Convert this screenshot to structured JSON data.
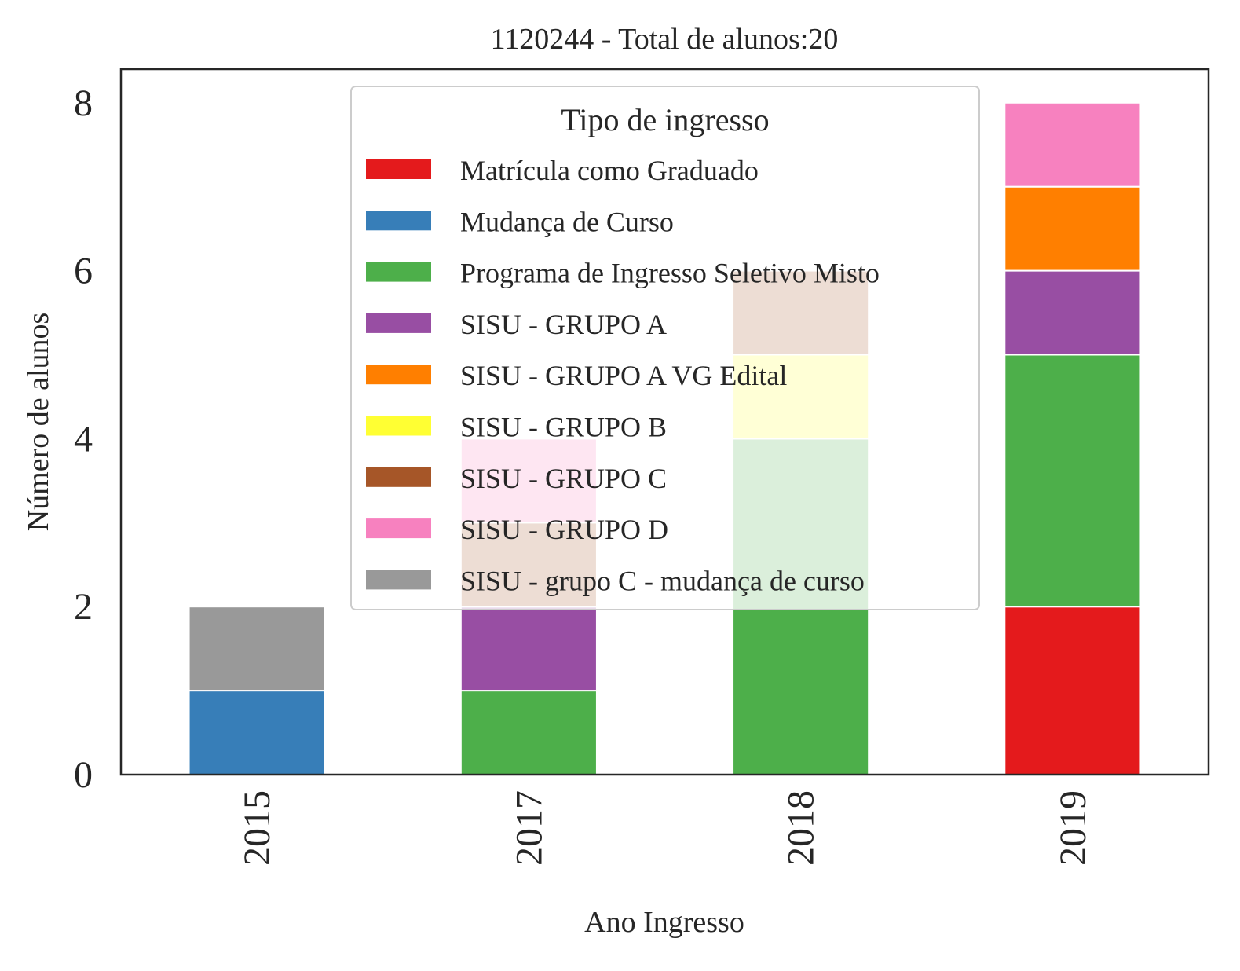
{
  "chart_data": {
    "type": "bar",
    "stacked": true,
    "title": "1120244 - Total de alunos:20",
    "xlabel": "Ano Ingresso",
    "ylabel": "Número de alunos",
    "categories": [
      "2015",
      "2017",
      "2018",
      "2019"
    ],
    "ylim": [
      0,
      8.4
    ],
    "yticks": [
      0,
      2,
      4,
      6,
      8
    ],
    "grid": false,
    "legend": {
      "title": "Tipo de ingresso",
      "placement": "top-center"
    },
    "series": [
      {
        "name": "Matrícula como Graduado",
        "color": "#e41a1c",
        "values": [
          0,
          0,
          0,
          2
        ]
      },
      {
        "name": "Mudança de Curso",
        "color": "#377eb8",
        "values": [
          1,
          0,
          0,
          0
        ]
      },
      {
        "name": "Programa de Ingresso Seletivo Misto",
        "color": "#4daf4a",
        "values": [
          0,
          1,
          4,
          3
        ]
      },
      {
        "name": "SISU - GRUPO A",
        "color": "#984ea3",
        "values": [
          0,
          1,
          0,
          1
        ]
      },
      {
        "name": "SISU - GRUPO A VG Edital",
        "color": "#ff7f00",
        "values": [
          0,
          0,
          0,
          1
        ]
      },
      {
        "name": "SISU - GRUPO B",
        "color": "#ffff33",
        "values": [
          0,
          0,
          1,
          0
        ]
      },
      {
        "name": "SISU - GRUPO C",
        "color": "#a65628",
        "values": [
          0,
          1,
          1,
          0
        ]
      },
      {
        "name": "SISU - GRUPO D",
        "color": "#f781bf",
        "values": [
          0,
          1,
          0,
          1
        ]
      },
      {
        "name": "SISU - grupo C - mudança de curso",
        "color": "#999999",
        "values": [
          1,
          0,
          0,
          0
        ]
      }
    ]
  }
}
